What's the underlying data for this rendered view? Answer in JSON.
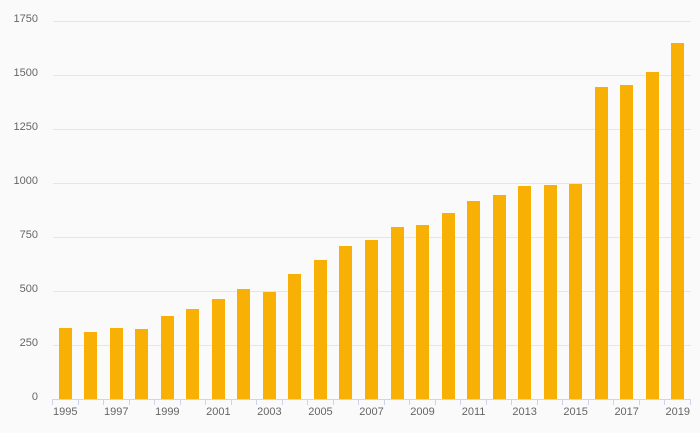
{
  "chart": {
    "colors": {
      "background": "#fafafa",
      "bar": "#f9b005",
      "gridline": "#e6e6e6",
      "axis_line": "#ccd6eb",
      "label_text": "#666666"
    }
  },
  "chart_data": {
    "type": "bar",
    "title": "",
    "xlabel": "",
    "ylabel": "",
    "categories": [
      "1995",
      "1996",
      "1997",
      "1998",
      "1999",
      "2000",
      "2001",
      "2002",
      "2003",
      "2004",
      "2005",
      "2006",
      "2007",
      "2008",
      "2009",
      "2010",
      "2011",
      "2012",
      "2013",
      "2014",
      "2015",
      "2016",
      "2017",
      "2018",
      "2019"
    ],
    "values": [
      330,
      310,
      330,
      325,
      385,
      415,
      465,
      510,
      495,
      580,
      645,
      710,
      735,
      795,
      805,
      860,
      915,
      945,
      985,
      990,
      995,
      1445,
      1455,
      1515,
      1650
    ],
    "ylim": [
      0,
      1750
    ],
    "ytick_interval": 250,
    "ytick_labels": [
      "0",
      "250",
      "500",
      "750",
      "1000",
      "1250",
      "1500",
      "1750"
    ],
    "xtick_labels_visible": [
      "1995",
      "1997",
      "1999",
      "2001",
      "2003",
      "2005",
      "2007",
      "2009",
      "2011",
      "2013",
      "2015",
      "2017",
      "2019"
    ],
    "grid": "horizontal",
    "legend": "none",
    "bar_color_name": "amber-yellow"
  }
}
